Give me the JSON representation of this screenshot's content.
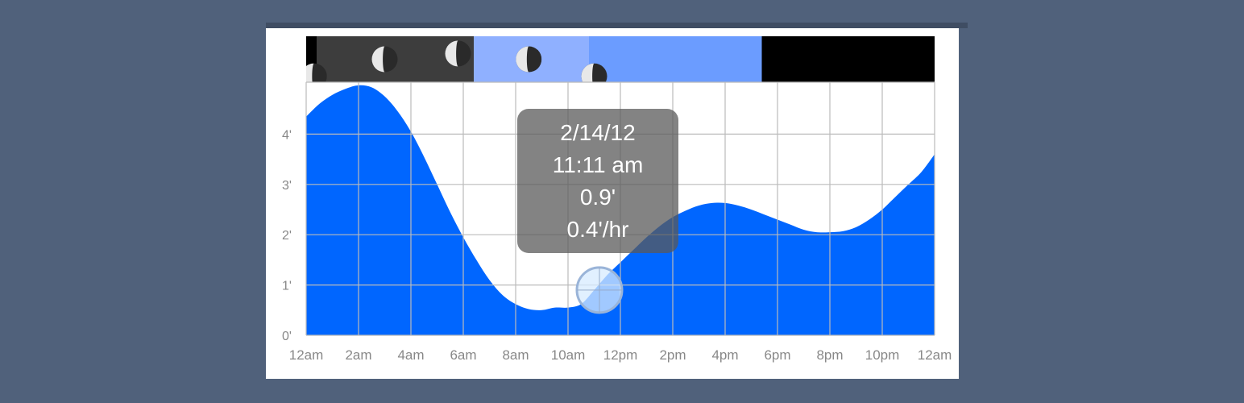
{
  "colors": {
    "background": "#50617b",
    "tide_fill": "#0066ff",
    "grid": "#bbbbbb",
    "night": "#3d3d3d",
    "twilight": "#8fb0ff",
    "daylight": "#6b9cff",
    "late_night": "#000000"
  },
  "tooltip": {
    "date": "2/14/12",
    "time": "11:11 am",
    "height": "0.9'",
    "rate": "0.4'/hr"
  },
  "chart_data": {
    "type": "area",
    "x_tick_labels": [
      "12am",
      "2am",
      "4am",
      "6am",
      "8am",
      "10am",
      "12pm",
      "2pm",
      "4pm",
      "6pm",
      "8pm",
      "10pm",
      "12am"
    ],
    "y_tick_labels": [
      "0'",
      "1'",
      "2'",
      "3'",
      "4'"
    ],
    "xlim": [
      0,
      24
    ],
    "ylim": [
      0,
      5
    ],
    "x": [
      0,
      0.5,
      1,
      1.5,
      2,
      2.5,
      3,
      3.5,
      4,
      4.5,
      5,
      5.5,
      6,
      6.5,
      7,
      7.5,
      8,
      8.5,
      9,
      9.5,
      10,
      10.5,
      11,
      11.5,
      12,
      12.5,
      13,
      13.5,
      14,
      14.5,
      15,
      15.5,
      16,
      16.5,
      17,
      17.5,
      18,
      18.5,
      19,
      19.5,
      20,
      20.5,
      21,
      21.5,
      22,
      22.5,
      23,
      23.5,
      24
    ],
    "y": [
      4.35,
      4.6,
      4.78,
      4.9,
      4.97,
      4.93,
      4.75,
      4.45,
      4.05,
      3.55,
      3.0,
      2.45,
      1.95,
      1.5,
      1.1,
      0.8,
      0.62,
      0.52,
      0.5,
      0.55,
      0.55,
      0.62,
      0.9,
      1.2,
      1.45,
      1.7,
      1.95,
      2.17,
      2.35,
      2.48,
      2.58,
      2.63,
      2.63,
      2.58,
      2.5,
      2.4,
      2.3,
      2.2,
      2.1,
      2.05,
      2.05,
      2.07,
      2.15,
      2.3,
      2.5,
      2.75,
      3.0,
      3.25,
      3.6
    ],
    "cursor": {
      "x": 11.2,
      "y": 0.9
    },
    "light_bands": [
      {
        "start": 0.4,
        "end": 6.4,
        "kind": "night"
      },
      {
        "start": 6.4,
        "end": 10.8,
        "kind": "twilight"
      },
      {
        "start": 10.8,
        "end": 17.4,
        "kind": "daylight"
      },
      {
        "start": 17.4,
        "end": 24,
        "kind": "late_night"
      }
    ],
    "moons": [
      {
        "x": 0.3,
        "level": 0.05
      },
      {
        "x": 3.0,
        "level": 0.5
      },
      {
        "x": 5.8,
        "level": 0.65
      },
      {
        "x": 8.5,
        "level": 0.5
      },
      {
        "x": 11.0,
        "level": 0.05
      }
    ]
  }
}
